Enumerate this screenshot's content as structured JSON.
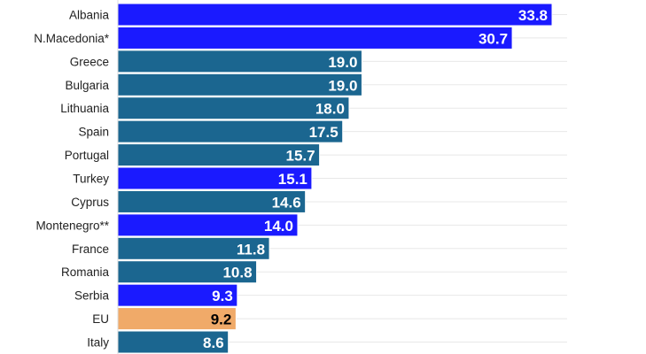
{
  "chart_data": {
    "type": "bar",
    "orientation": "horizontal",
    "title": "",
    "xlabel": "",
    "ylabel": "",
    "xlim": [
      0,
      35
    ],
    "grid": true,
    "legend": "none",
    "categories": [
      "Albania",
      "N.Macedonia*",
      "Greece",
      "Bulgaria",
      "Lithuania",
      "Spain",
      "Portugal",
      "Turkey",
      "Cyprus",
      "Montenegro**",
      "France",
      "Romania",
      "Serbia",
      "EU",
      "Italy"
    ],
    "values": [
      33.8,
      30.7,
      19.0,
      19.0,
      18.0,
      17.5,
      15.7,
      15.1,
      14.6,
      14.0,
      11.8,
      10.8,
      9.3,
      9.2,
      8.6
    ],
    "labels": [
      "33.8",
      "30.7",
      "19.0",
      "19.0",
      "18.0",
      "17.5",
      "15.7",
      "15.1",
      "14.6",
      "14.0",
      "11.8",
      "10.8",
      "9.3",
      "9.2",
      "8.6"
    ],
    "groups": [
      "candidate",
      "candidate",
      "eu",
      "eu",
      "eu",
      "eu",
      "eu",
      "candidate",
      "eu",
      "candidate",
      "eu",
      "eu",
      "candidate",
      "average",
      "eu"
    ],
    "colors": {
      "candidate": "#1a1aff",
      "eu": "#1b6690",
      "average": "#f0aa69",
      "grid": "#e8e8e8"
    },
    "label_colors": {
      "candidate": "#ffffff",
      "eu": "#ffffff",
      "average": "#000000"
    }
  }
}
